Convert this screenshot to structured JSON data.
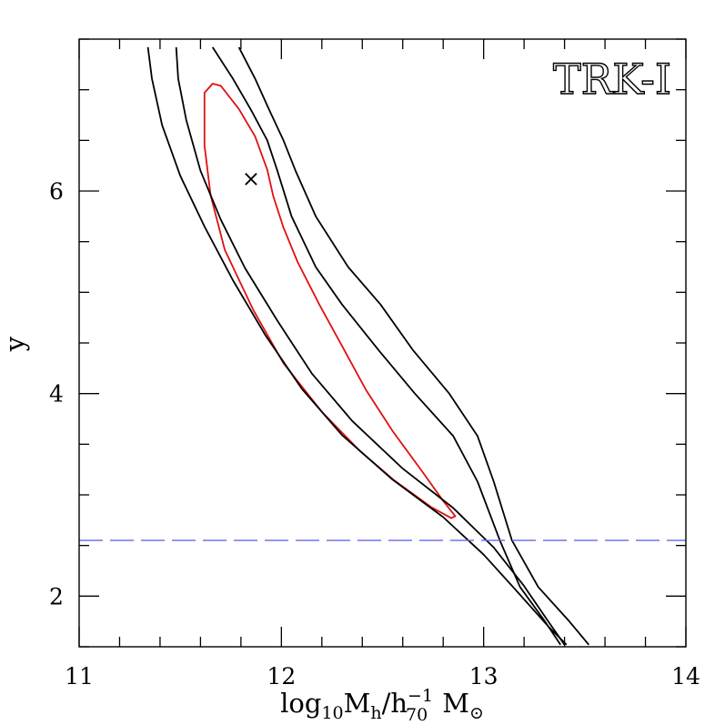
{
  "chart_data": {
    "type": "line",
    "title": "",
    "panel_label": "TRK-I",
    "xlabel": "log₁₀Mₕ/h₇₀⁻¹ M☉",
    "xlabel_parts": {
      "main": "log",
      "sub1": "10",
      "m": "M",
      "sub2": "h",
      "slash": "/h",
      "sup": "−1",
      "sub3": "70",
      "msun": "M",
      "sun_sub": "⊙"
    },
    "ylabel": "y",
    "xlim": [
      11,
      14
    ],
    "ylim": [
      1.5,
      7.5
    ],
    "x_ticks": [
      11,
      12,
      13,
      14
    ],
    "x_tick_labels": [
      "11",
      "12",
      "13",
      "14"
    ],
    "x_minor_step": 0.2,
    "y_ticks": [
      2,
      4,
      6
    ],
    "y_tick_labels": [
      "2",
      "4",
      "6"
    ],
    "y_minor_step": 0.5,
    "grid": false,
    "best_fit_marker": {
      "x": 11.85,
      "y": 6.12,
      "symbol": "×"
    },
    "reference_line": {
      "y": 2.55,
      "style": "dashed",
      "color": "#6666ee"
    },
    "colors": {
      "inner_contour": "#e01010",
      "outer_contour": "#000000",
      "reference": "#6666ee"
    },
    "series": [
      {
        "role": "inner-contour",
        "color": "#e01010",
        "closed": true,
        "points": [
          [
            11.66,
            7.06
          ],
          [
            11.7,
            7.04
          ],
          [
            11.79,
            6.81
          ],
          [
            11.87,
            6.54
          ],
          [
            11.93,
            6.21
          ],
          [
            11.96,
            5.95
          ],
          [
            12.01,
            5.64
          ],
          [
            12.08,
            5.3
          ],
          [
            12.19,
            4.87
          ],
          [
            12.3,
            4.47
          ],
          [
            12.42,
            4.03
          ],
          [
            12.55,
            3.63
          ],
          [
            12.7,
            3.22
          ],
          [
            12.8,
            2.94
          ],
          [
            12.86,
            2.79
          ],
          [
            12.84,
            2.77
          ],
          [
            12.74,
            2.88
          ],
          [
            12.56,
            3.14
          ],
          [
            12.39,
            3.43
          ],
          [
            12.2,
            3.82
          ],
          [
            12.01,
            4.3
          ],
          [
            11.86,
            4.83
          ],
          [
            11.72,
            5.42
          ],
          [
            11.65,
            5.96
          ],
          [
            11.62,
            6.45
          ],
          [
            11.62,
            6.97
          ],
          [
            11.66,
            7.06
          ]
        ]
      },
      {
        "role": "outer-contour-left-1",
        "color": "#000000",
        "closed": false,
        "points": [
          [
            11.34,
            7.42
          ],
          [
            11.36,
            7.11
          ],
          [
            11.41,
            6.65
          ],
          [
            11.5,
            6.15
          ],
          [
            11.62,
            5.65
          ],
          [
            11.76,
            5.12
          ],
          [
            11.92,
            4.58
          ],
          [
            12.1,
            4.05
          ],
          [
            12.3,
            3.59
          ],
          [
            12.55,
            3.15
          ],
          [
            12.8,
            2.78
          ],
          [
            13.0,
            2.41
          ],
          [
            13.15,
            2.08
          ],
          [
            13.32,
            1.7
          ],
          [
            13.41,
            1.52
          ]
        ]
      },
      {
        "role": "outer-contour-left-2",
        "color": "#000000",
        "closed": false,
        "points": [
          [
            11.48,
            7.42
          ],
          [
            11.49,
            7.11
          ],
          [
            11.53,
            6.7
          ],
          [
            11.6,
            6.2
          ],
          [
            11.7,
            5.72
          ],
          [
            11.82,
            5.24
          ],
          [
            11.98,
            4.72
          ],
          [
            12.15,
            4.2
          ],
          [
            12.35,
            3.73
          ],
          [
            12.6,
            3.26
          ],
          [
            12.85,
            2.87
          ],
          [
            13.05,
            2.48
          ],
          [
            13.2,
            2.1
          ],
          [
            13.32,
            1.75
          ],
          [
            13.4,
            1.52
          ]
        ]
      },
      {
        "role": "outer-contour-right-1",
        "color": "#000000",
        "closed": false,
        "points": [
          [
            11.66,
            7.42
          ],
          [
            11.76,
            7.11
          ],
          [
            11.85,
            6.8
          ],
          [
            11.93,
            6.5
          ],
          [
            11.98,
            6.2
          ],
          [
            12.05,
            5.75
          ],
          [
            12.17,
            5.25
          ],
          [
            12.3,
            4.88
          ],
          [
            12.48,
            4.43
          ],
          [
            12.66,
            4.0
          ],
          [
            12.85,
            3.58
          ],
          [
            12.97,
            3.13
          ],
          [
            13.08,
            2.55
          ],
          [
            13.18,
            2.09
          ],
          [
            13.3,
            1.76
          ],
          [
            13.38,
            1.52
          ]
        ]
      },
      {
        "role": "outer-contour-right-2",
        "color": "#000000",
        "closed": false,
        "points": [
          [
            11.79,
            7.42
          ],
          [
            11.87,
            7.11
          ],
          [
            11.94,
            6.8
          ],
          [
            12.01,
            6.5
          ],
          [
            12.07,
            6.2
          ],
          [
            12.17,
            5.75
          ],
          [
            12.33,
            5.25
          ],
          [
            12.49,
            4.88
          ],
          [
            12.65,
            4.43
          ],
          [
            12.83,
            4.0
          ],
          [
            12.97,
            3.58
          ],
          [
            13.05,
            3.13
          ],
          [
            13.14,
            2.55
          ],
          [
            13.27,
            2.09
          ],
          [
            13.42,
            1.76
          ],
          [
            13.52,
            1.52
          ]
        ]
      }
    ]
  }
}
